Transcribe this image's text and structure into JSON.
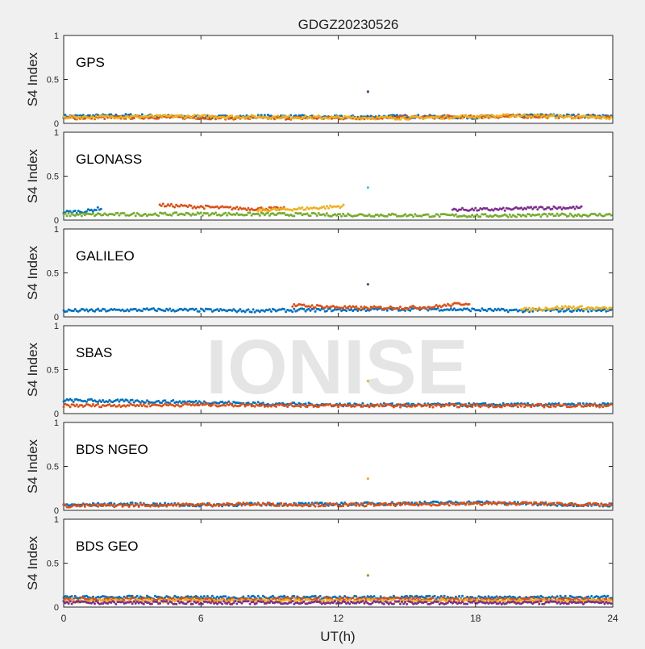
{
  "figure": {
    "title": "GDGZ20230526",
    "xlabel": "UT(h)",
    "watermark": "IONISE"
  },
  "chart_data": {
    "type": "scatter",
    "title": "GDGZ20230526",
    "xlabel": "UT(h)",
    "ylabel": "S4 Index",
    "xlim": [
      0,
      24
    ],
    "ylim": [
      0,
      1
    ],
    "xticks": [
      0,
      6,
      12,
      18,
      24
    ],
    "yticks": [
      0,
      0.5,
      1
    ],
    "xtick_labels": [
      "0",
      "6",
      "12",
      "18",
      "24"
    ],
    "ytick_labels": [
      "0",
      "0.5",
      "1"
    ],
    "grid": false,
    "series_colors": [
      "#0072BD",
      "#D95319",
      "#EDB120",
      "#7E2F8E",
      "#77AC30",
      "#4DBEEE",
      "#A2142F"
    ],
    "panels": [
      {
        "label": "GPS",
        "series": [
          {
            "x": [
              0,
              3,
              6,
              9,
              12,
              15,
              18,
              21,
              24
            ],
            "y": [
              0.08,
              0.09,
              0.07,
              0.08,
              0.07,
              0.08,
              0.07,
              0.09,
              0.08
            ]
          },
          {
            "x": [
              0,
              4,
              8,
              12,
              16,
              20,
              24
            ],
            "y": [
              0.06,
              0.07,
              0.06,
              0.06,
              0.07,
              0.08,
              0.07
            ]
          },
          {
            "x": [
              0,
              5,
              10,
              15,
              20,
              24
            ],
            "y": [
              0.07,
              0.08,
              0.07,
              0.06,
              0.09,
              0.06
            ]
          },
          {
            "x": [
              13.3
            ],
            "y": [
              0.36
            ]
          }
        ]
      },
      {
        "label": "GLONASS",
        "series": [
          {
            "x": [
              0,
              1,
              1.7
            ],
            "y": [
              0.09,
              0.1,
              0.14
            ]
          },
          {
            "x": [
              4.2,
              6,
              8,
              9.7
            ],
            "y": [
              0.17,
              0.15,
              0.13,
              0.13
            ]
          },
          {
            "x": [
              8.5,
              10.5,
              12.3
            ],
            "y": [
              0.11,
              0.13,
              0.16
            ]
          },
          {
            "x": [
              17,
              19,
              21,
              22.7
            ],
            "y": [
              0.12,
              0.12,
              0.14,
              0.14
            ]
          },
          {
            "x": [
              0,
              6,
              12,
              18,
              24
            ],
            "y": [
              0.06,
              0.07,
              0.06,
              0.05,
              0.06
            ]
          },
          {
            "x": [
              13.3
            ],
            "y": [
              0.37
            ]
          }
        ]
      },
      {
        "label": "GALILEO",
        "series": [
          {
            "x": [
              0,
              4,
              8,
              12,
              16,
              20,
              24
            ],
            "y": [
              0.07,
              0.08,
              0.07,
              0.08,
              0.09,
              0.07,
              0.08
            ]
          },
          {
            "x": [
              10,
              13,
              16,
              17.8
            ],
            "y": [
              0.13,
              0.1,
              0.11,
              0.16
            ]
          },
          {
            "x": [
              20,
              22,
              24
            ],
            "y": [
              0.08,
              0.11,
              0.09
            ]
          },
          {
            "x": [
              13.3
            ],
            "y": [
              0.37
            ]
          }
        ]
      },
      {
        "label": "SBAS",
        "series": [
          {
            "x": [
              0,
              3,
              6,
              9,
              12,
              15,
              18,
              21,
              24
            ],
            "y": [
              0.15,
              0.14,
              0.13,
              0.11,
              0.1,
              0.1,
              0.1,
              0.1,
              0.1
            ]
          },
          {
            "x": [
              0,
              6,
              12,
              18,
              24
            ],
            "y": [
              0.09,
              0.1,
              0.09,
              0.09,
              0.09
            ]
          },
          {
            "x": [
              13.3
            ],
            "y": [
              0.37
            ]
          }
        ]
      },
      {
        "label": "BDS NGEO",
        "series": [
          {
            "x": [
              0,
              3,
              6,
              9,
              12,
              15,
              18,
              21,
              24
            ],
            "y": [
              0.06,
              0.07,
              0.06,
              0.07,
              0.07,
              0.08,
              0.09,
              0.07,
              0.06
            ]
          },
          {
            "x": [
              0,
              4,
              8,
              12,
              16,
              20,
              24
            ],
            "y": [
              0.05,
              0.06,
              0.07,
              0.06,
              0.07,
              0.08,
              0.06
            ]
          },
          {
            "x": [
              13.3
            ],
            "y": [
              0.36
            ]
          }
        ]
      },
      {
        "label": "BDS GEO",
        "series": [
          {
            "x": [
              0,
              24
            ],
            "y": [
              0.11,
              0.11
            ]
          },
          {
            "x": [
              0,
              24
            ],
            "y": [
              0.09,
              0.09
            ]
          },
          {
            "x": [
              0,
              24
            ],
            "y": [
              0.07,
              0.07
            ]
          },
          {
            "x": [
              0,
              24
            ],
            "y": [
              0.05,
              0.05
            ]
          },
          {
            "x": [
              13.3
            ],
            "y": [
              0.36
            ]
          }
        ]
      }
    ]
  }
}
